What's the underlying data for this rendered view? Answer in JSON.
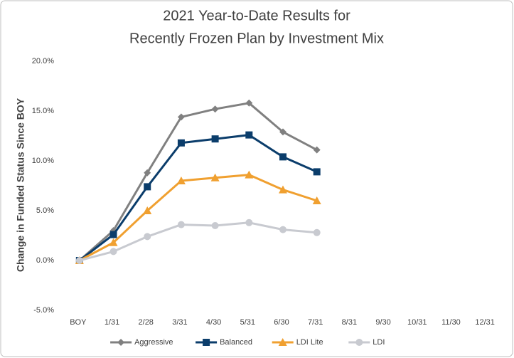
{
  "chart_data": {
    "type": "line",
    "title": [
      "2021 Year-to-Date Results for",
      "Recently Frozen Plan by Investment Mix"
    ],
    "y_label": "Change in Funded Status Since BOY",
    "categories": [
      "BOY",
      "1/31",
      "2/28",
      "3/31",
      "4/30",
      "5/31",
      "6/30",
      "7/31",
      "8/31",
      "9/30",
      "10/31",
      "11/30",
      "12/31"
    ],
    "series": [
      {
        "name": "Aggressive",
        "color": "#808080",
        "marker": "diamond",
        "values": [
          0,
          3.0,
          8.8,
          14.4,
          15.2,
          15.8,
          12.9,
          11.1,
          null,
          null,
          null,
          null,
          null
        ]
      },
      {
        "name": "Balanced",
        "color": "#0b3d6b",
        "marker": "square",
        "values": [
          0,
          2.6,
          7.4,
          11.8,
          12.2,
          12.6,
          10.4,
          8.9,
          null,
          null,
          null,
          null,
          null
        ]
      },
      {
        "name": "LDI Lite",
        "color": "#f0a030",
        "marker": "triangle",
        "values": [
          0,
          1.8,
          5.0,
          8.0,
          8.3,
          8.6,
          7.1,
          6.0,
          null,
          null,
          null,
          null,
          null
        ]
      },
      {
        "name": "LDI",
        "color": "#c8cad0",
        "marker": "circle",
        "values": [
          0,
          0.9,
          2.4,
          3.6,
          3.5,
          3.8,
          3.1,
          2.8,
          null,
          null,
          null,
          null,
          null
        ]
      }
    ],
    "ylim": [
      -5,
      20
    ],
    "yticks": [
      {
        "value": -5,
        "label": "-5.0%"
      },
      {
        "value": 0,
        "label": "0.0%"
      },
      {
        "value": 5,
        "label": "5.0%"
      },
      {
        "value": 10,
        "label": "10.0%"
      },
      {
        "value": 15,
        "label": "15.0%"
      },
      {
        "value": 20,
        "label": "20.0%"
      }
    ],
    "legend": "bottom"
  }
}
